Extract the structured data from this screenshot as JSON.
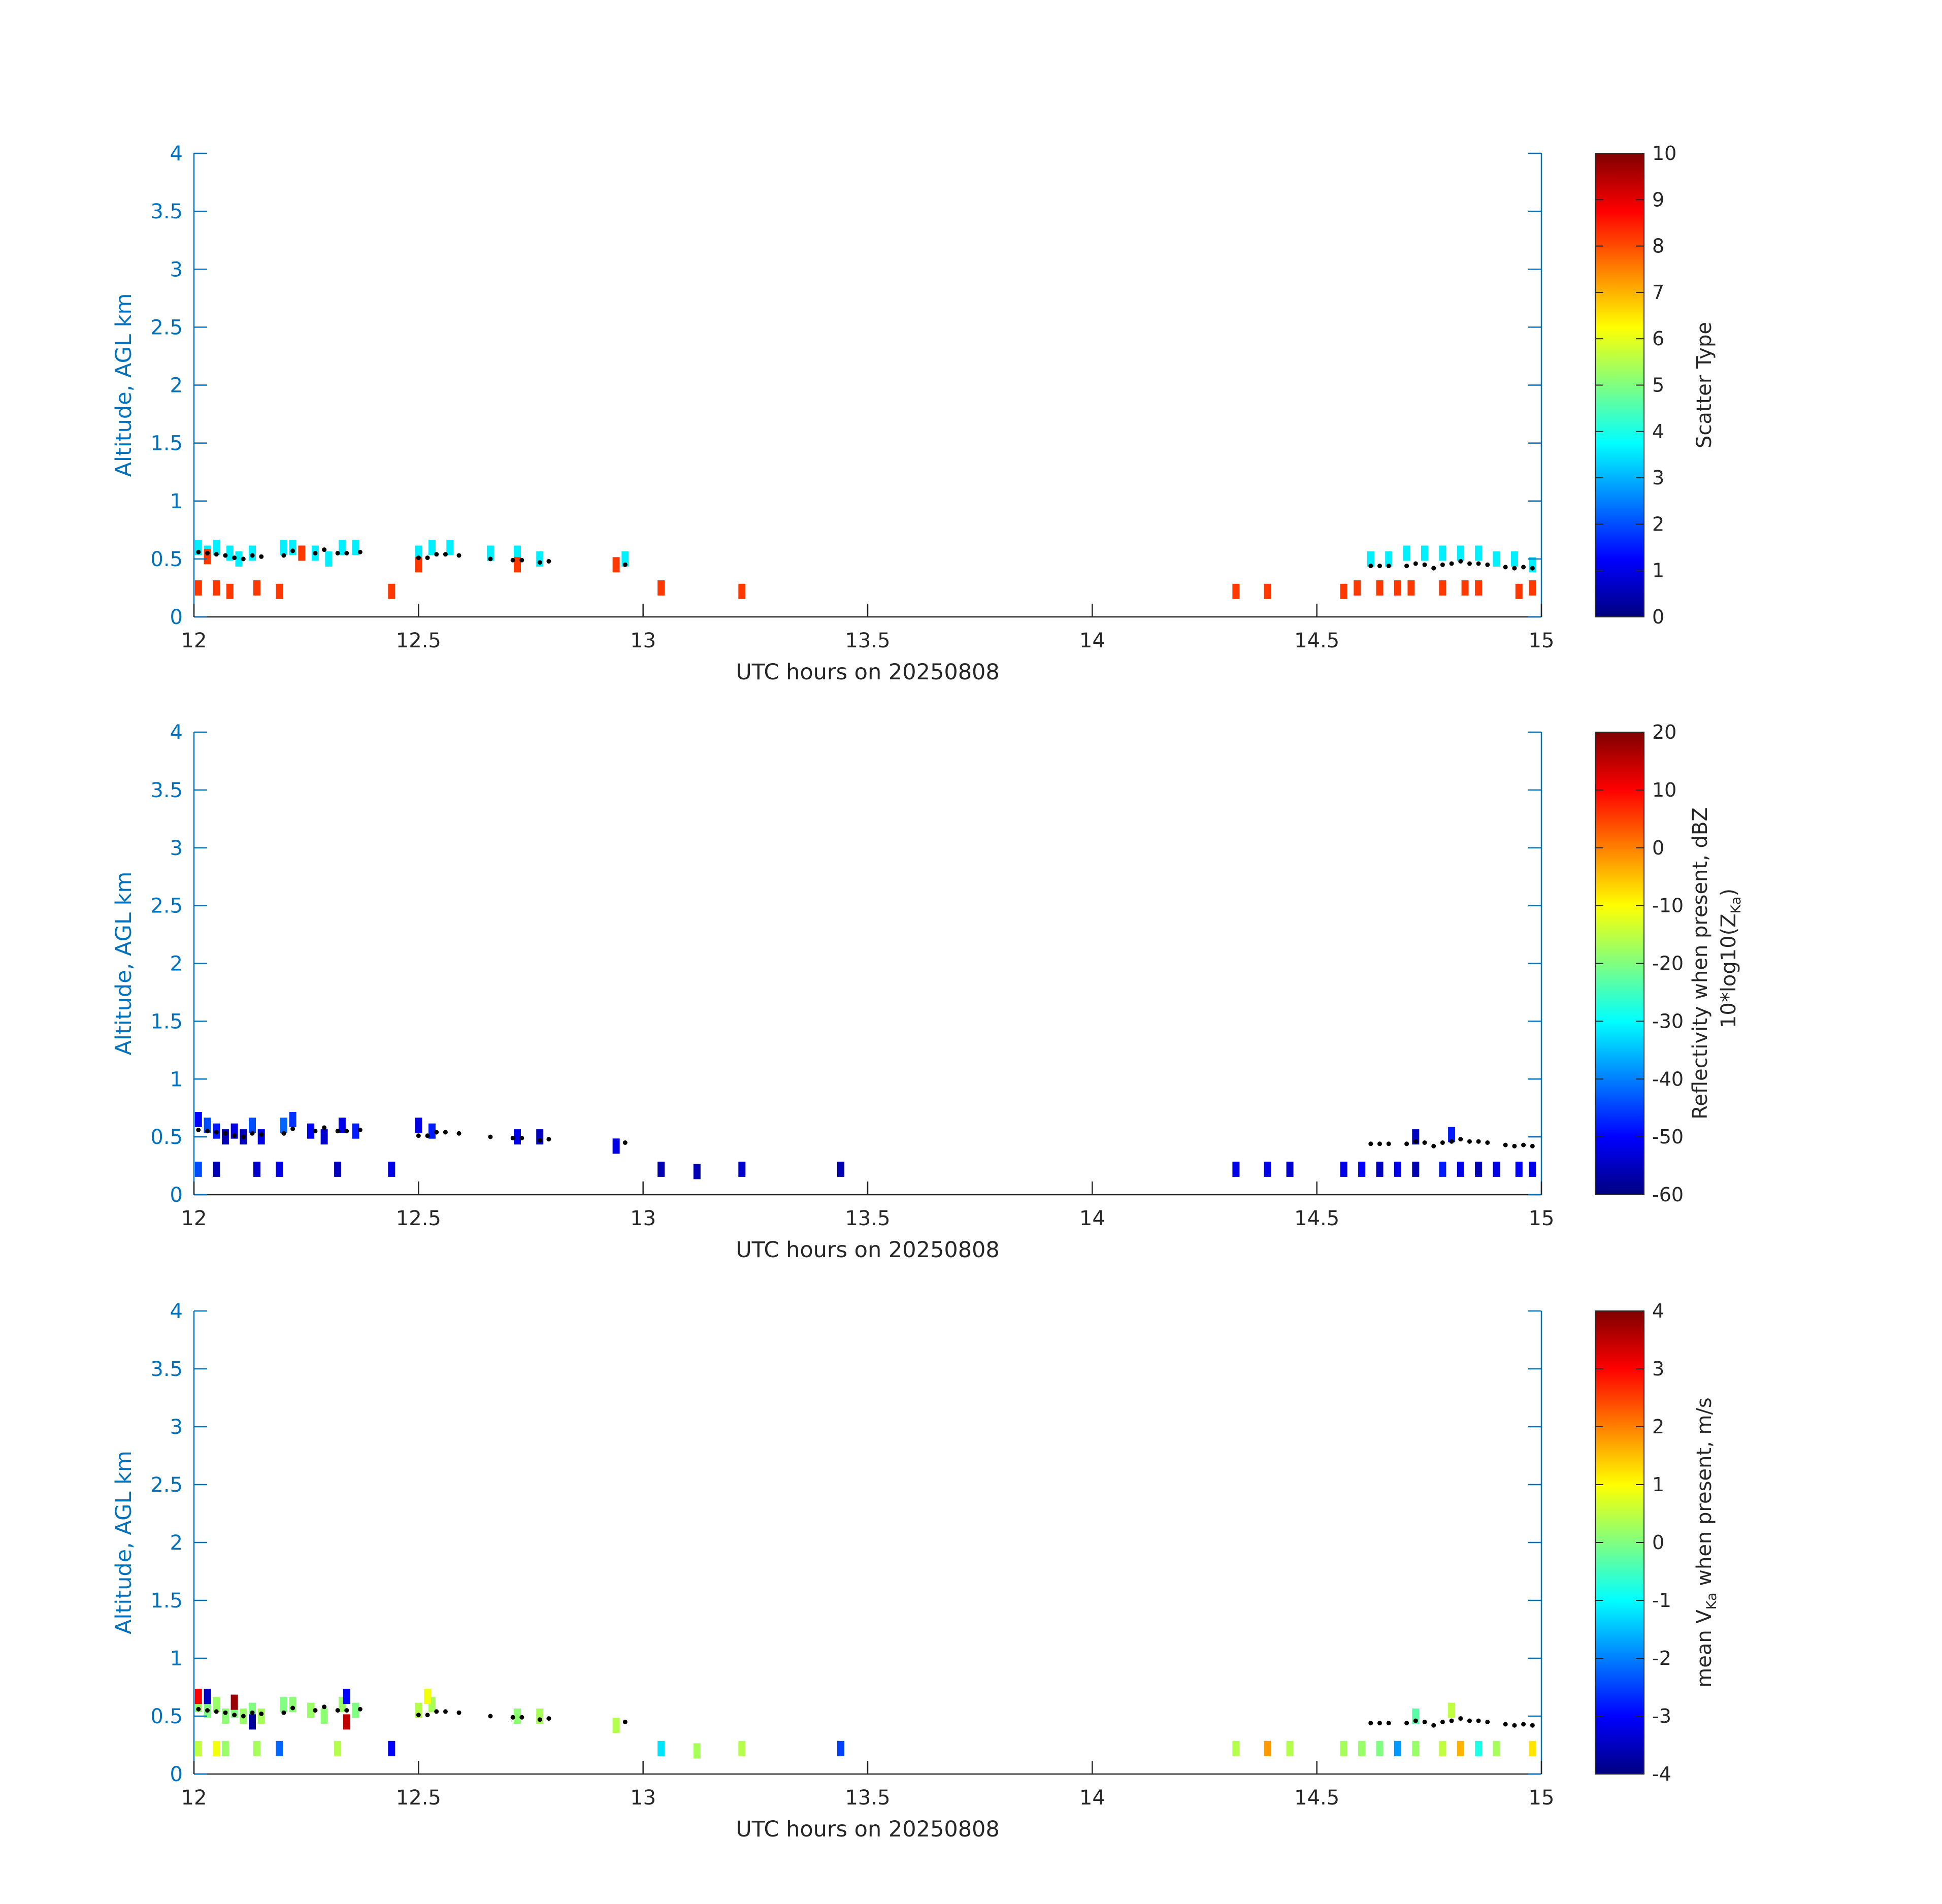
{
  "chart_data": [
    {
      "type": "heatmap",
      "ylabel": "Altitude, AGL km",
      "xlabel": "UTC hours on 20250808",
      "xlim": [
        12,
        15
      ],
      "ylim": [
        0,
        4
      ],
      "x_ticks": [
        "12",
        "12.5",
        "13",
        "13.5",
        "14",
        "14.5",
        "15"
      ],
      "y_ticks": [
        "0",
        "0.5",
        "1",
        "1.5",
        "2",
        "2.5",
        "3",
        "3.5",
        "4"
      ],
      "colorbar": {
        "label": "Scatter Type",
        "label_line2": "",
        "range": [
          0,
          10
        ],
        "ticks": [
          "0",
          "1",
          "2",
          "3",
          "4",
          "5",
          "6",
          "7",
          "8",
          "9",
          "10"
        ]
      },
      "cells": [
        [
          12.01,
          0.6,
          3.6
        ],
        [
          12.03,
          0.55,
          3.6
        ],
        [
          12.05,
          0.6,
          3.6
        ],
        [
          12.08,
          0.55,
          3.6
        ],
        [
          12.1,
          0.5,
          3.6
        ],
        [
          12.13,
          0.55,
          3.6
        ],
        [
          12.2,
          0.6,
          3.6
        ],
        [
          12.22,
          0.6,
          3.6
        ],
        [
          12.27,
          0.55,
          3.6
        ],
        [
          12.3,
          0.5,
          3.6
        ],
        [
          12.33,
          0.6,
          3.6
        ],
        [
          12.36,
          0.6,
          3.6
        ],
        [
          12.5,
          0.55,
          3.6
        ],
        [
          12.53,
          0.6,
          3.6
        ],
        [
          12.57,
          0.6,
          3.6
        ],
        [
          12.66,
          0.55,
          3.6
        ],
        [
          12.72,
          0.55,
          3.6
        ],
        [
          12.77,
          0.5,
          3.6
        ],
        [
          12.96,
          0.5,
          3.6
        ],
        [
          14.62,
          0.5,
          3.6
        ],
        [
          14.66,
          0.5,
          3.6
        ],
        [
          14.7,
          0.55,
          3.6
        ],
        [
          14.74,
          0.55,
          3.6
        ],
        [
          14.78,
          0.55,
          3.6
        ],
        [
          14.82,
          0.55,
          3.6
        ],
        [
          14.86,
          0.55,
          3.6
        ],
        [
          14.9,
          0.5,
          3.6
        ],
        [
          14.94,
          0.5,
          3.6
        ],
        [
          14.98,
          0.45,
          3.6
        ],
        [
          12.01,
          0.25,
          8.2
        ],
        [
          12.05,
          0.25,
          8.2
        ],
        [
          12.08,
          0.22,
          8.2
        ],
        [
          12.14,
          0.25,
          8.2
        ],
        [
          12.19,
          0.22,
          8.2
        ],
        [
          12.44,
          0.22,
          8.2
        ],
        [
          12.72,
          0.45,
          8.2
        ],
        [
          12.94,
          0.45,
          8.2
        ],
        [
          13.04,
          0.25,
          8.2
        ],
        [
          13.22,
          0.22,
          8.2
        ],
        [
          14.32,
          0.22,
          8.2
        ],
        [
          14.39,
          0.22,
          8.2
        ],
        [
          14.56,
          0.22,
          8.2
        ],
        [
          14.59,
          0.25,
          8.2
        ],
        [
          14.64,
          0.25,
          8.2
        ],
        [
          14.68,
          0.25,
          8.2
        ],
        [
          14.71,
          0.25,
          8.2
        ],
        [
          14.78,
          0.25,
          8.2
        ],
        [
          14.83,
          0.25,
          8.2
        ],
        [
          14.86,
          0.25,
          8.2
        ],
        [
          14.95,
          0.22,
          8.2
        ],
        [
          14.98,
          0.25,
          8.2
        ],
        [
          12.03,
          0.52,
          8.2
        ],
        [
          12.24,
          0.55,
          8.2
        ],
        [
          12.5,
          0.45,
          8.2
        ]
      ],
      "dots": [
        [
          12.01,
          0.56
        ],
        [
          12.03,
          0.55
        ],
        [
          12.05,
          0.54
        ],
        [
          12.07,
          0.53
        ],
        [
          12.09,
          0.51
        ],
        [
          12.11,
          0.5
        ],
        [
          12.13,
          0.53
        ],
        [
          12.15,
          0.52
        ],
        [
          12.2,
          0.53
        ],
        [
          12.22,
          0.57
        ],
        [
          12.27,
          0.55
        ],
        [
          12.29,
          0.58
        ],
        [
          12.32,
          0.55
        ],
        [
          12.34,
          0.55
        ],
        [
          12.37,
          0.56
        ],
        [
          12.5,
          0.51
        ],
        [
          12.52,
          0.51
        ],
        [
          12.54,
          0.54
        ],
        [
          12.56,
          0.54
        ],
        [
          12.59,
          0.53
        ],
        [
          12.66,
          0.5
        ],
        [
          12.71,
          0.49
        ],
        [
          12.73,
          0.49
        ],
        [
          12.77,
          0.47
        ],
        [
          12.79,
          0.48
        ],
        [
          12.96,
          0.45
        ],
        [
          14.62,
          0.44
        ],
        [
          14.64,
          0.44
        ],
        [
          14.66,
          0.44
        ],
        [
          14.7,
          0.44
        ],
        [
          14.72,
          0.46
        ],
        [
          14.74,
          0.45
        ],
        [
          14.76,
          0.42
        ],
        [
          14.78,
          0.45
        ],
        [
          14.8,
          0.46
        ],
        [
          14.82,
          0.48
        ],
        [
          14.84,
          0.46
        ],
        [
          14.86,
          0.46
        ],
        [
          14.88,
          0.45
        ],
        [
          14.92,
          0.43
        ],
        [
          14.94,
          0.42
        ],
        [
          14.96,
          0.43
        ],
        [
          14.98,
          0.42
        ]
      ]
    },
    {
      "type": "heatmap",
      "ylabel": "Altitude, AGL km",
      "xlabel": "UTC hours on 20250808",
      "xlim": [
        12,
        15
      ],
      "ylim": [
        0,
        4
      ],
      "x_ticks": [
        "12",
        "12.5",
        "13",
        "13.5",
        "14",
        "14.5",
        "15"
      ],
      "y_ticks": [
        "0",
        "0.5",
        "1",
        "1.5",
        "2",
        "2.5",
        "3",
        "3.5",
        "4"
      ],
      "colorbar": {
        "label": "Reflectivity when present, dBZ",
        "label_line2": "10*log10(Z",
        "label_line2_sub": "Ka",
        "label_line2_end": ")",
        "range": [
          -60,
          20
        ],
        "ticks": [
          "-60",
          "-50",
          "-40",
          "-30",
          "-20",
          "-10",
          "0",
          "10",
          "20"
        ]
      },
      "cells": [
        [
          12.01,
          0.65,
          -50
        ],
        [
          12.03,
          0.6,
          -44
        ],
        [
          12.05,
          0.55,
          -48
        ],
        [
          12.07,
          0.5,
          -56
        ],
        [
          12.09,
          0.55,
          -52
        ],
        [
          12.11,
          0.5,
          -55
        ],
        [
          12.13,
          0.6,
          -44
        ],
        [
          12.15,
          0.5,
          -52
        ],
        [
          12.2,
          0.6,
          -42
        ],
        [
          12.22,
          0.65,
          -46
        ],
        [
          12.26,
          0.55,
          -50
        ],
        [
          12.29,
          0.5,
          -54
        ],
        [
          12.33,
          0.6,
          -52
        ],
        [
          12.36,
          0.55,
          -48
        ],
        [
          12.5,
          0.6,
          -52
        ],
        [
          12.53,
          0.55,
          -48
        ],
        [
          12.72,
          0.5,
          -52
        ],
        [
          12.77,
          0.5,
          -55
        ],
        [
          12.94,
          0.42,
          -52
        ],
        [
          12.01,
          0.22,
          -44
        ],
        [
          12.05,
          0.22,
          -56
        ],
        [
          12.14,
          0.22,
          -54
        ],
        [
          12.19,
          0.22,
          -52
        ],
        [
          12.32,
          0.22,
          -55
        ],
        [
          12.44,
          0.22,
          -52
        ],
        [
          13.04,
          0.22,
          -56
        ],
        [
          13.12,
          0.2,
          -56
        ],
        [
          13.22,
          0.22,
          -54
        ],
        [
          13.44,
          0.22,
          -56
        ],
        [
          14.32,
          0.22,
          -52
        ],
        [
          14.39,
          0.22,
          -52
        ],
        [
          14.44,
          0.22,
          -54
        ],
        [
          14.56,
          0.22,
          -52
        ],
        [
          14.6,
          0.22,
          -50
        ],
        [
          14.64,
          0.22,
          -55
        ],
        [
          14.68,
          0.22,
          -52
        ],
        [
          14.72,
          0.22,
          -56
        ],
        [
          14.78,
          0.22,
          -48
        ],
        [
          14.82,
          0.22,
          -52
        ],
        [
          14.86,
          0.22,
          -56
        ],
        [
          14.9,
          0.22,
          -52
        ],
        [
          14.95,
          0.22,
          -50
        ],
        [
          14.98,
          0.22,
          -52
        ],
        [
          14.72,
          0.5,
          -55
        ],
        [
          14.8,
          0.52,
          -48
        ]
      ],
      "dots": [
        [
          12.01,
          0.56
        ],
        [
          12.03,
          0.55
        ],
        [
          12.05,
          0.54
        ],
        [
          12.07,
          0.53
        ],
        [
          12.09,
          0.51
        ],
        [
          12.11,
          0.5
        ],
        [
          12.13,
          0.53
        ],
        [
          12.15,
          0.52
        ],
        [
          12.2,
          0.53
        ],
        [
          12.22,
          0.57
        ],
        [
          12.27,
          0.55
        ],
        [
          12.29,
          0.58
        ],
        [
          12.32,
          0.55
        ],
        [
          12.34,
          0.55
        ],
        [
          12.37,
          0.56
        ],
        [
          12.5,
          0.51
        ],
        [
          12.52,
          0.51
        ],
        [
          12.54,
          0.54
        ],
        [
          12.56,
          0.54
        ],
        [
          12.59,
          0.53
        ],
        [
          12.66,
          0.5
        ],
        [
          12.71,
          0.49
        ],
        [
          12.73,
          0.49
        ],
        [
          12.77,
          0.47
        ],
        [
          12.79,
          0.48
        ],
        [
          12.96,
          0.45
        ],
        [
          14.62,
          0.44
        ],
        [
          14.64,
          0.44
        ],
        [
          14.66,
          0.44
        ],
        [
          14.7,
          0.44
        ],
        [
          14.72,
          0.46
        ],
        [
          14.74,
          0.45
        ],
        [
          14.76,
          0.42
        ],
        [
          14.78,
          0.45
        ],
        [
          14.8,
          0.46
        ],
        [
          14.82,
          0.48
        ],
        [
          14.84,
          0.46
        ],
        [
          14.86,
          0.46
        ],
        [
          14.88,
          0.45
        ],
        [
          14.92,
          0.43
        ],
        [
          14.94,
          0.42
        ],
        [
          14.96,
          0.43
        ],
        [
          14.98,
          0.42
        ]
      ]
    },
    {
      "type": "heatmap",
      "ylabel": "Altitude, AGL km",
      "xlabel": "UTC hours on 20250808",
      "xlim": [
        12,
        15
      ],
      "ylim": [
        0,
        4
      ],
      "x_ticks": [
        "12",
        "12.5",
        "13",
        "13.5",
        "14",
        "14.5",
        "15"
      ],
      "y_ticks": [
        "0",
        "0.5",
        "1",
        "1.5",
        "2",
        "2.5",
        "3",
        "3.5",
        "4"
      ],
      "colorbar": {
        "label": "mean V",
        "label_sub": "Ka",
        "label_end": " when present, m/s",
        "range": [
          -4,
          4
        ],
        "ticks": [
          "-4",
          "-3",
          "-2",
          "-1",
          "0",
          "1",
          "2",
          "3",
          "4"
        ]
      },
      "cells": [
        [
          12.01,
          0.6,
          0.2
        ],
        [
          12.03,
          0.55,
          0.0
        ],
        [
          12.05,
          0.6,
          0.2
        ],
        [
          12.07,
          0.5,
          0.1
        ],
        [
          12.09,
          0.55,
          0.0
        ],
        [
          12.11,
          0.5,
          0.2
        ],
        [
          12.13,
          0.55,
          0.0
        ],
        [
          12.15,
          0.5,
          0.3
        ],
        [
          12.2,
          0.6,
          0.0
        ],
        [
          12.22,
          0.6,
          0.1
        ],
        [
          12.26,
          0.55,
          0.2
        ],
        [
          12.29,
          0.5,
          0.1
        ],
        [
          12.33,
          0.6,
          0.2
        ],
        [
          12.36,
          0.55,
          0.0
        ],
        [
          12.5,
          0.55,
          0.4
        ],
        [
          12.53,
          0.6,
          0.3
        ],
        [
          12.72,
          0.5,
          0.1
        ],
        [
          12.77,
          0.5,
          0.3
        ],
        [
          12.94,
          0.42,
          0.4
        ],
        [
          12.01,
          0.67,
          3.0
        ],
        [
          12.03,
          0.67,
          -3.5
        ],
        [
          12.09,
          0.62,
          3.8
        ],
        [
          12.13,
          0.45,
          -3.8
        ],
        [
          12.34,
          0.45,
          3.5
        ],
        [
          12.34,
          0.67,
          -3.0
        ],
        [
          12.52,
          0.67,
          0.9
        ],
        [
          12.01,
          0.22,
          0.5
        ],
        [
          12.05,
          0.22,
          0.9
        ],
        [
          12.07,
          0.22,
          0.2
        ],
        [
          12.14,
          0.22,
          0.3
        ],
        [
          12.19,
          0.22,
          -2.2
        ],
        [
          12.32,
          0.22,
          0.4
        ],
        [
          12.44,
          0.22,
          -3.0
        ],
        [
          13.04,
          0.22,
          -1.2
        ],
        [
          13.12,
          0.2,
          0.3
        ],
        [
          13.22,
          0.22,
          0.4
        ],
        [
          13.44,
          0.22,
          -2.5
        ],
        [
          14.32,
          0.22,
          0.4
        ],
        [
          14.39,
          0.22,
          1.8
        ],
        [
          14.44,
          0.22,
          0.4
        ],
        [
          14.56,
          0.22,
          0.3
        ],
        [
          14.6,
          0.22,
          0.2
        ],
        [
          14.64,
          0.22,
          0.0
        ],
        [
          14.68,
          0.22,
          -1.8
        ],
        [
          14.72,
          0.22,
          0.2
        ],
        [
          14.78,
          0.22,
          0.5
        ],
        [
          14.82,
          0.22,
          1.6
        ],
        [
          14.86,
          0.22,
          -0.8
        ],
        [
          14.9,
          0.22,
          0.3
        ],
        [
          14.98,
          0.22,
          1.2
        ],
        [
          14.72,
          0.5,
          -0.3
        ],
        [
          14.8,
          0.55,
          0.5
        ]
      ],
      "dots": [
        [
          12.01,
          0.56
        ],
        [
          12.03,
          0.55
        ],
        [
          12.05,
          0.54
        ],
        [
          12.07,
          0.53
        ],
        [
          12.09,
          0.51
        ],
        [
          12.11,
          0.5
        ],
        [
          12.13,
          0.53
        ],
        [
          12.15,
          0.52
        ],
        [
          12.2,
          0.53
        ],
        [
          12.22,
          0.57
        ],
        [
          12.27,
          0.55
        ],
        [
          12.29,
          0.58
        ],
        [
          12.32,
          0.55
        ],
        [
          12.34,
          0.55
        ],
        [
          12.37,
          0.56
        ],
        [
          12.5,
          0.51
        ],
        [
          12.52,
          0.51
        ],
        [
          12.54,
          0.54
        ],
        [
          12.56,
          0.54
        ],
        [
          12.59,
          0.53
        ],
        [
          12.66,
          0.5
        ],
        [
          12.71,
          0.49
        ],
        [
          12.73,
          0.49
        ],
        [
          12.77,
          0.47
        ],
        [
          12.79,
          0.48
        ],
        [
          12.96,
          0.45
        ],
        [
          14.62,
          0.44
        ],
        [
          14.64,
          0.44
        ],
        [
          14.66,
          0.44
        ],
        [
          14.7,
          0.44
        ],
        [
          14.72,
          0.46
        ],
        [
          14.74,
          0.45
        ],
        [
          14.76,
          0.42
        ],
        [
          14.78,
          0.45
        ],
        [
          14.8,
          0.46
        ],
        [
          14.82,
          0.48
        ],
        [
          14.84,
          0.46
        ],
        [
          14.86,
          0.46
        ],
        [
          14.88,
          0.45
        ],
        [
          14.92,
          0.43
        ],
        [
          14.94,
          0.42
        ],
        [
          14.96,
          0.43
        ],
        [
          14.98,
          0.42
        ]
      ]
    }
  ]
}
